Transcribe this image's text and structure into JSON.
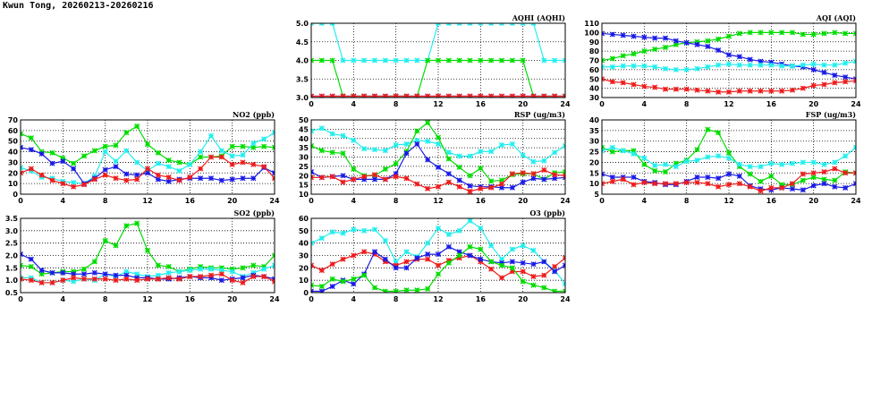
{
  "page_title": "Kwun Tong, 20260213-20260216",
  "series_colors": {
    "green": "#00dd00",
    "cyan": "#22eeee",
    "blue": "#1a1ae6",
    "red": "#ee1c1c"
  },
  "chart_data": [
    {
      "id": "aqhi",
      "type": "line",
      "title": "AQHI (AQHI)",
      "ylim": [
        3,
        5
      ],
      "yticks": [
        "3.0",
        "3.5",
        "4.0",
        "4.5",
        "5.0"
      ],
      "ytick_values": [
        3,
        3.5,
        4,
        4.5,
        5
      ],
      "xticks": [
        "0",
        "4",
        "8",
        "12",
        "16",
        "20",
        "24"
      ],
      "xlim": [
        0,
        24
      ],
      "grid": true,
      "series": [
        {
          "name": "cyan",
          "values": [
            5,
            5,
            5,
            4,
            4,
            4,
            4,
            4,
            4,
            4,
            4,
            4,
            5,
            5,
            5,
            5,
            5,
            5,
            5,
            5,
            5,
            5,
            4,
            4,
            4
          ]
        },
        {
          "name": "green",
          "values": [
            4,
            4,
            4,
            3,
            3,
            3,
            3,
            3,
            3,
            3,
            3,
            4,
            4,
            4,
            4,
            4,
            4,
            4,
            4,
            4,
            4,
            3,
            3,
            3,
            3
          ]
        },
        {
          "name": "blue",
          "values": [
            3,
            3,
            3,
            3,
            3,
            3,
            3,
            3,
            3,
            3,
            3,
            3,
            3,
            3,
            3,
            3,
            3,
            3,
            3,
            3,
            3,
            3,
            3,
            3,
            3
          ]
        },
        {
          "name": "red",
          "values": [
            3,
            3,
            3,
            3,
            3,
            3,
            3,
            3,
            3,
            3,
            3,
            3,
            3,
            3,
            3,
            3,
            3,
            3,
            3,
            3,
            3,
            3,
            3,
            3,
            3
          ]
        }
      ]
    },
    {
      "id": "aqi",
      "type": "line",
      "title": "AQI (AQI)",
      "ylim": [
        30,
        110
      ],
      "yticks": [
        "30",
        "40",
        "50",
        "60",
        "70",
        "80",
        "90",
        "100",
        "110"
      ],
      "ytick_values": [
        30,
        40,
        50,
        60,
        70,
        80,
        90,
        100,
        110
      ],
      "xticks": [
        "0",
        "4",
        "8",
        "12",
        "16",
        "20",
        "24"
      ],
      "xlim": [
        0,
        24
      ],
      "grid": true,
      "series": [
        {
          "name": "green",
          "values": [
            70,
            72,
            75,
            77,
            80,
            82,
            84,
            87,
            89,
            90,
            91,
            93,
            96,
            99,
            100,
            100,
            100,
            100,
            100,
            98,
            98,
            99,
            100,
            99,
            99
          ]
        },
        {
          "name": "blue",
          "values": [
            99,
            98,
            97,
            96,
            95,
            94,
            94,
            91,
            89,
            87,
            85,
            81,
            76,
            74,
            71,
            69,
            68,
            66,
            64,
            63,
            60,
            57,
            54,
            52,
            50
          ]
        },
        {
          "name": "cyan",
          "values": [
            63,
            63,
            64,
            64,
            64,
            63,
            61,
            60,
            60,
            61,
            63,
            65,
            66,
            65,
            65,
            65,
            65,
            64,
            64,
            65,
            66,
            65,
            65,
            67,
            69
          ]
        },
        {
          "name": "red",
          "values": [
            50,
            47,
            46,
            44,
            42,
            41,
            39,
            39,
            39,
            38,
            37,
            36,
            36,
            37,
            37,
            37,
            37,
            37,
            38,
            40,
            43,
            44,
            46,
            47,
            48
          ]
        }
      ]
    },
    {
      "id": "no2",
      "type": "line",
      "title": "NO2 (ppb)",
      "ylim": [
        0,
        70
      ],
      "yticks": [
        "0",
        "10",
        "20",
        "30",
        "40",
        "50",
        "60",
        "70"
      ],
      "ytick_values": [
        0,
        10,
        20,
        30,
        40,
        50,
        60,
        70
      ],
      "xticks": [
        "0",
        "4",
        "8",
        "12",
        "16",
        "20",
        "24"
      ],
      "xlim": [
        0,
        24
      ],
      "grid": true,
      "series": [
        {
          "name": "green",
          "values": [
            57,
            53,
            40,
            39,
            34,
            29,
            36,
            41,
            45,
            46,
            58,
            64,
            47,
            39,
            32,
            30,
            28,
            35,
            35,
            36,
            45,
            45,
            44,
            45,
            44
          ]
        },
        {
          "name": "cyan",
          "values": [
            25,
            22,
            16,
            15,
            12,
            11,
            10,
            17,
            40,
            31,
            41,
            30,
            22,
            29,
            26,
            22,
            28,
            40,
            55,
            41,
            36,
            37,
            48,
            52,
            58
          ]
        },
        {
          "name": "blue",
          "values": [
            44,
            42,
            38,
            29,
            31,
            24,
            10,
            15,
            23,
            26,
            19,
            18,
            20,
            14,
            12,
            14,
            15,
            15,
            15,
            13,
            14,
            15,
            15,
            25,
            20
          ]
        },
        {
          "name": "red",
          "values": [
            20,
            24,
            18,
            13,
            10,
            7,
            9,
            14,
            18,
            15,
            13,
            14,
            24,
            18,
            16,
            13,
            16,
            24,
            35,
            35,
            28,
            30,
            28,
            26,
            15
          ]
        }
      ]
    },
    {
      "id": "rsp",
      "type": "line",
      "title": "RSP (ug/m3)",
      "ylim": [
        10,
        50
      ],
      "yticks": [
        "10",
        "15",
        "20",
        "25",
        "30",
        "35",
        "40",
        "45",
        "50"
      ],
      "ytick_values": [
        10,
        15,
        20,
        25,
        30,
        35,
        40,
        45,
        50
      ],
      "xticks": [
        "0",
        "4",
        "8",
        "12",
        "16",
        "20",
        "24"
      ],
      "xlim": [
        0,
        24
      ],
      "grid": true,
      "series": [
        {
          "name": "cyan",
          "values": [
            44,
            45.5,
            42.5,
            41.5,
            39,
            34.5,
            34,
            33.5,
            36.5,
            37,
            39,
            38.5,
            37,
            32.5,
            30.5,
            30.5,
            33,
            33,
            36.5,
            37,
            31,
            27.5,
            28,
            32.5,
            36
          ]
        },
        {
          "name": "green",
          "values": [
            36,
            33.5,
            32.5,
            32,
            23.5,
            20,
            20,
            23.5,
            26.5,
            33,
            44,
            48.5,
            40.5,
            29,
            24.5,
            20,
            24,
            17,
            17.5,
            20.5,
            21,
            21,
            18,
            21.5,
            22
          ]
        },
        {
          "name": "blue",
          "values": [
            22,
            19,
            19.5,
            20,
            18,
            18,
            18,
            18,
            21,
            32,
            37,
            28.5,
            24.5,
            21,
            17.5,
            14.5,
            14,
            14,
            13.5,
            13.5,
            16.5,
            18.5,
            18,
            18.5,
            19
          ]
        },
        {
          "name": "red",
          "values": [
            19,
            19,
            19.5,
            16.5,
            18,
            19.5,
            20.5,
            18,
            19.5,
            18.5,
            15.5,
            13,
            14,
            16.5,
            14,
            11.5,
            13,
            13.5,
            15.5,
            21,
            21.5,
            21,
            23,
            20.5,
            20
          ]
        }
      ]
    },
    {
      "id": "fsp",
      "type": "line",
      "title": "FSP (ug/m3)",
      "ylim": [
        5,
        40
      ],
      "yticks": [
        "5",
        "10",
        "15",
        "20",
        "25",
        "30",
        "35",
        "40"
      ],
      "ytick_values": [
        5,
        10,
        15,
        20,
        25,
        30,
        35,
        40
      ],
      "xticks": [
        "0",
        "4",
        "8",
        "12",
        "16",
        "20",
        "24"
      ],
      "xlim": [
        0,
        24
      ],
      "grid": true,
      "series": [
        {
          "name": "green",
          "values": [
            27,
            25,
            25.5,
            25.5,
            19,
            16,
            15.5,
            19.5,
            21,
            26,
            35.5,
            34,
            24.5,
            18,
            14.5,
            11,
            13.5,
            9.5,
            9.5,
            11.5,
            13,
            12,
            11.5,
            15.5,
            15
          ]
        },
        {
          "name": "cyan",
          "values": [
            25.5,
            27,
            25.5,
            24,
            22,
            18.5,
            19,
            18,
            20.5,
            21,
            22.5,
            23,
            22,
            19,
            18,
            18,
            19.5,
            19,
            19.5,
            20,
            20,
            19,
            20,
            23,
            27
          ]
        },
        {
          "name": "blue",
          "values": [
            14.5,
            13,
            13,
            13,
            11,
            10.5,
            9.5,
            9.5,
            11,
            13,
            13,
            12.5,
            14.5,
            13.5,
            9,
            7.5,
            7,
            8,
            7.5,
            7,
            9,
            10,
            8.5,
            8,
            10
          ]
        },
        {
          "name": "red",
          "values": [
            10,
            11,
            12,
            9.5,
            10.5,
            10,
            10,
            10,
            10.5,
            10.5,
            10,
            8.5,
            9.5,
            10,
            8.5,
            6.5,
            8,
            8,
            10,
            14.5,
            15,
            15.5,
            17,
            15,
            15
          ]
        }
      ]
    },
    {
      "id": "so2",
      "type": "line",
      "title": "SO2 (ppb)",
      "ylim": [
        0.5,
        3.5
      ],
      "yticks": [
        "0.5",
        "1.0",
        "1.5",
        "2.0",
        "2.5",
        "3.0",
        "3.5"
      ],
      "ytick_values": [
        0.5,
        1,
        1.5,
        2,
        2.5,
        3,
        3.5
      ],
      "xticks": [
        "0",
        "4",
        "8",
        "12",
        "16",
        "20",
        "24"
      ],
      "xlim": [
        0,
        24
      ],
      "grid": true,
      "series": [
        {
          "name": "green",
          "values": [
            1.6,
            1.55,
            1.25,
            1.3,
            1.35,
            1.35,
            1.45,
            1.75,
            2.6,
            2.4,
            3.2,
            3.3,
            2.2,
            1.6,
            1.55,
            1.35,
            1.45,
            1.55,
            1.5,
            1.5,
            1.45,
            1.5,
            1.6,
            1.55,
            2.0
          ]
        },
        {
          "name": "cyan",
          "values": [
            1.1,
            1.1,
            0.9,
            0.9,
            1.0,
            0.95,
            1.05,
            1.0,
            1.25,
            1.15,
            1.35,
            1.25,
            1.15,
            1.2,
            1.3,
            1.35,
            1.4,
            1.45,
            1.45,
            1.4,
            1.35,
            1.15,
            1.3,
            1.45,
            1.6
          ]
        },
        {
          "name": "blue",
          "values": [
            2.05,
            1.85,
            1.4,
            1.3,
            1.3,
            1.25,
            1.25,
            1.3,
            1.25,
            1.2,
            1.2,
            1.1,
            1.1,
            1.05,
            1.05,
            1.1,
            1.15,
            1.1,
            1.1,
            1.0,
            1.05,
            1.1,
            1.2,
            1.15,
            1.05
          ]
        },
        {
          "name": "red",
          "values": [
            1.05,
            1.0,
            0.9,
            0.9,
            1.0,
            1.1,
            1.05,
            1.05,
            1.05,
            1.0,
            1.05,
            1.0,
            1.05,
            1.05,
            1.1,
            1.05,
            1.15,
            1.15,
            1.2,
            1.25,
            1.0,
            0.9,
            1.15,
            1.15,
            0.95
          ]
        }
      ]
    },
    {
      "id": "o3",
      "type": "line",
      "title": "O3 (ppb)",
      "ylim": [
        0,
        60
      ],
      "yticks": [
        "0",
        "10",
        "20",
        "30",
        "40",
        "50",
        "60"
      ],
      "ytick_values": [
        0,
        10,
        20,
        30,
        40,
        50,
        60
      ],
      "xticks": [
        "0",
        "4",
        "8",
        "12",
        "16",
        "20",
        "24"
      ],
      "xlim": [
        0,
        24
      ],
      "grid": true,
      "series": [
        {
          "name": "cyan",
          "values": [
            40,
            44,
            49,
            48,
            51,
            50,
            51,
            42,
            25,
            33,
            29,
            40,
            52,
            47,
            50,
            58,
            52,
            38,
            27,
            35,
            38,
            34,
            25,
            18,
            7
          ]
        },
        {
          "name": "red",
          "values": [
            22,
            18,
            23,
            27,
            30,
            33,
            31,
            25,
            22,
            25,
            27,
            27,
            22,
            26,
            28,
            30,
            25,
            19,
            12,
            17,
            17,
            13,
            14,
            21,
            28
          ]
        },
        {
          "name": "blue",
          "values": [
            1,
            1,
            5,
            10,
            7,
            15,
            33,
            27,
            20,
            20,
            28,
            31,
            31,
            37,
            33,
            30,
            27,
            25,
            24,
            25,
            24,
            23,
            25,
            17,
            22
          ]
        },
        {
          "name": "green",
          "values": [
            6,
            5,
            11,
            9,
            11,
            14,
            4,
            1,
            1,
            2,
            2,
            3,
            15,
            24,
            30,
            37,
            35,
            25,
            22,
            20,
            9,
            6,
            4,
            1,
            1
          ]
        }
      ]
    }
  ]
}
